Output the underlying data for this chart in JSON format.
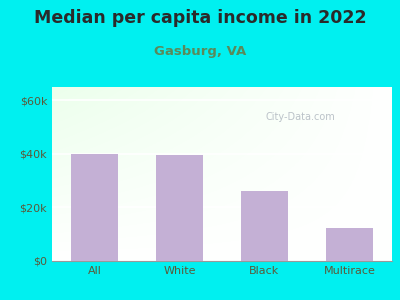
{
  "title": "Median per capita income in 2022",
  "subtitle": "Gasburg, VA",
  "categories": [
    "All",
    "White",
    "Black",
    "Multirace"
  ],
  "values": [
    40000,
    39500,
    26000,
    12500
  ],
  "bar_color": "#c4b0d5",
  "yticks": [
    0,
    20000,
    40000,
    60000
  ],
  "ytick_labels": [
    "$0",
    "$20k",
    "$40k",
    "$60k"
  ],
  "ylim": [
    0,
    65000
  ],
  "bg_outer": "#00f0f0",
  "title_color": "#2a2a2a",
  "subtitle_color": "#5a8a5a",
  "tick_color": "#5a5a3a",
  "watermark": "City-Data.com",
  "title_fontsize": 12.5,
  "subtitle_fontsize": 9.5,
  "tick_fontsize": 8
}
